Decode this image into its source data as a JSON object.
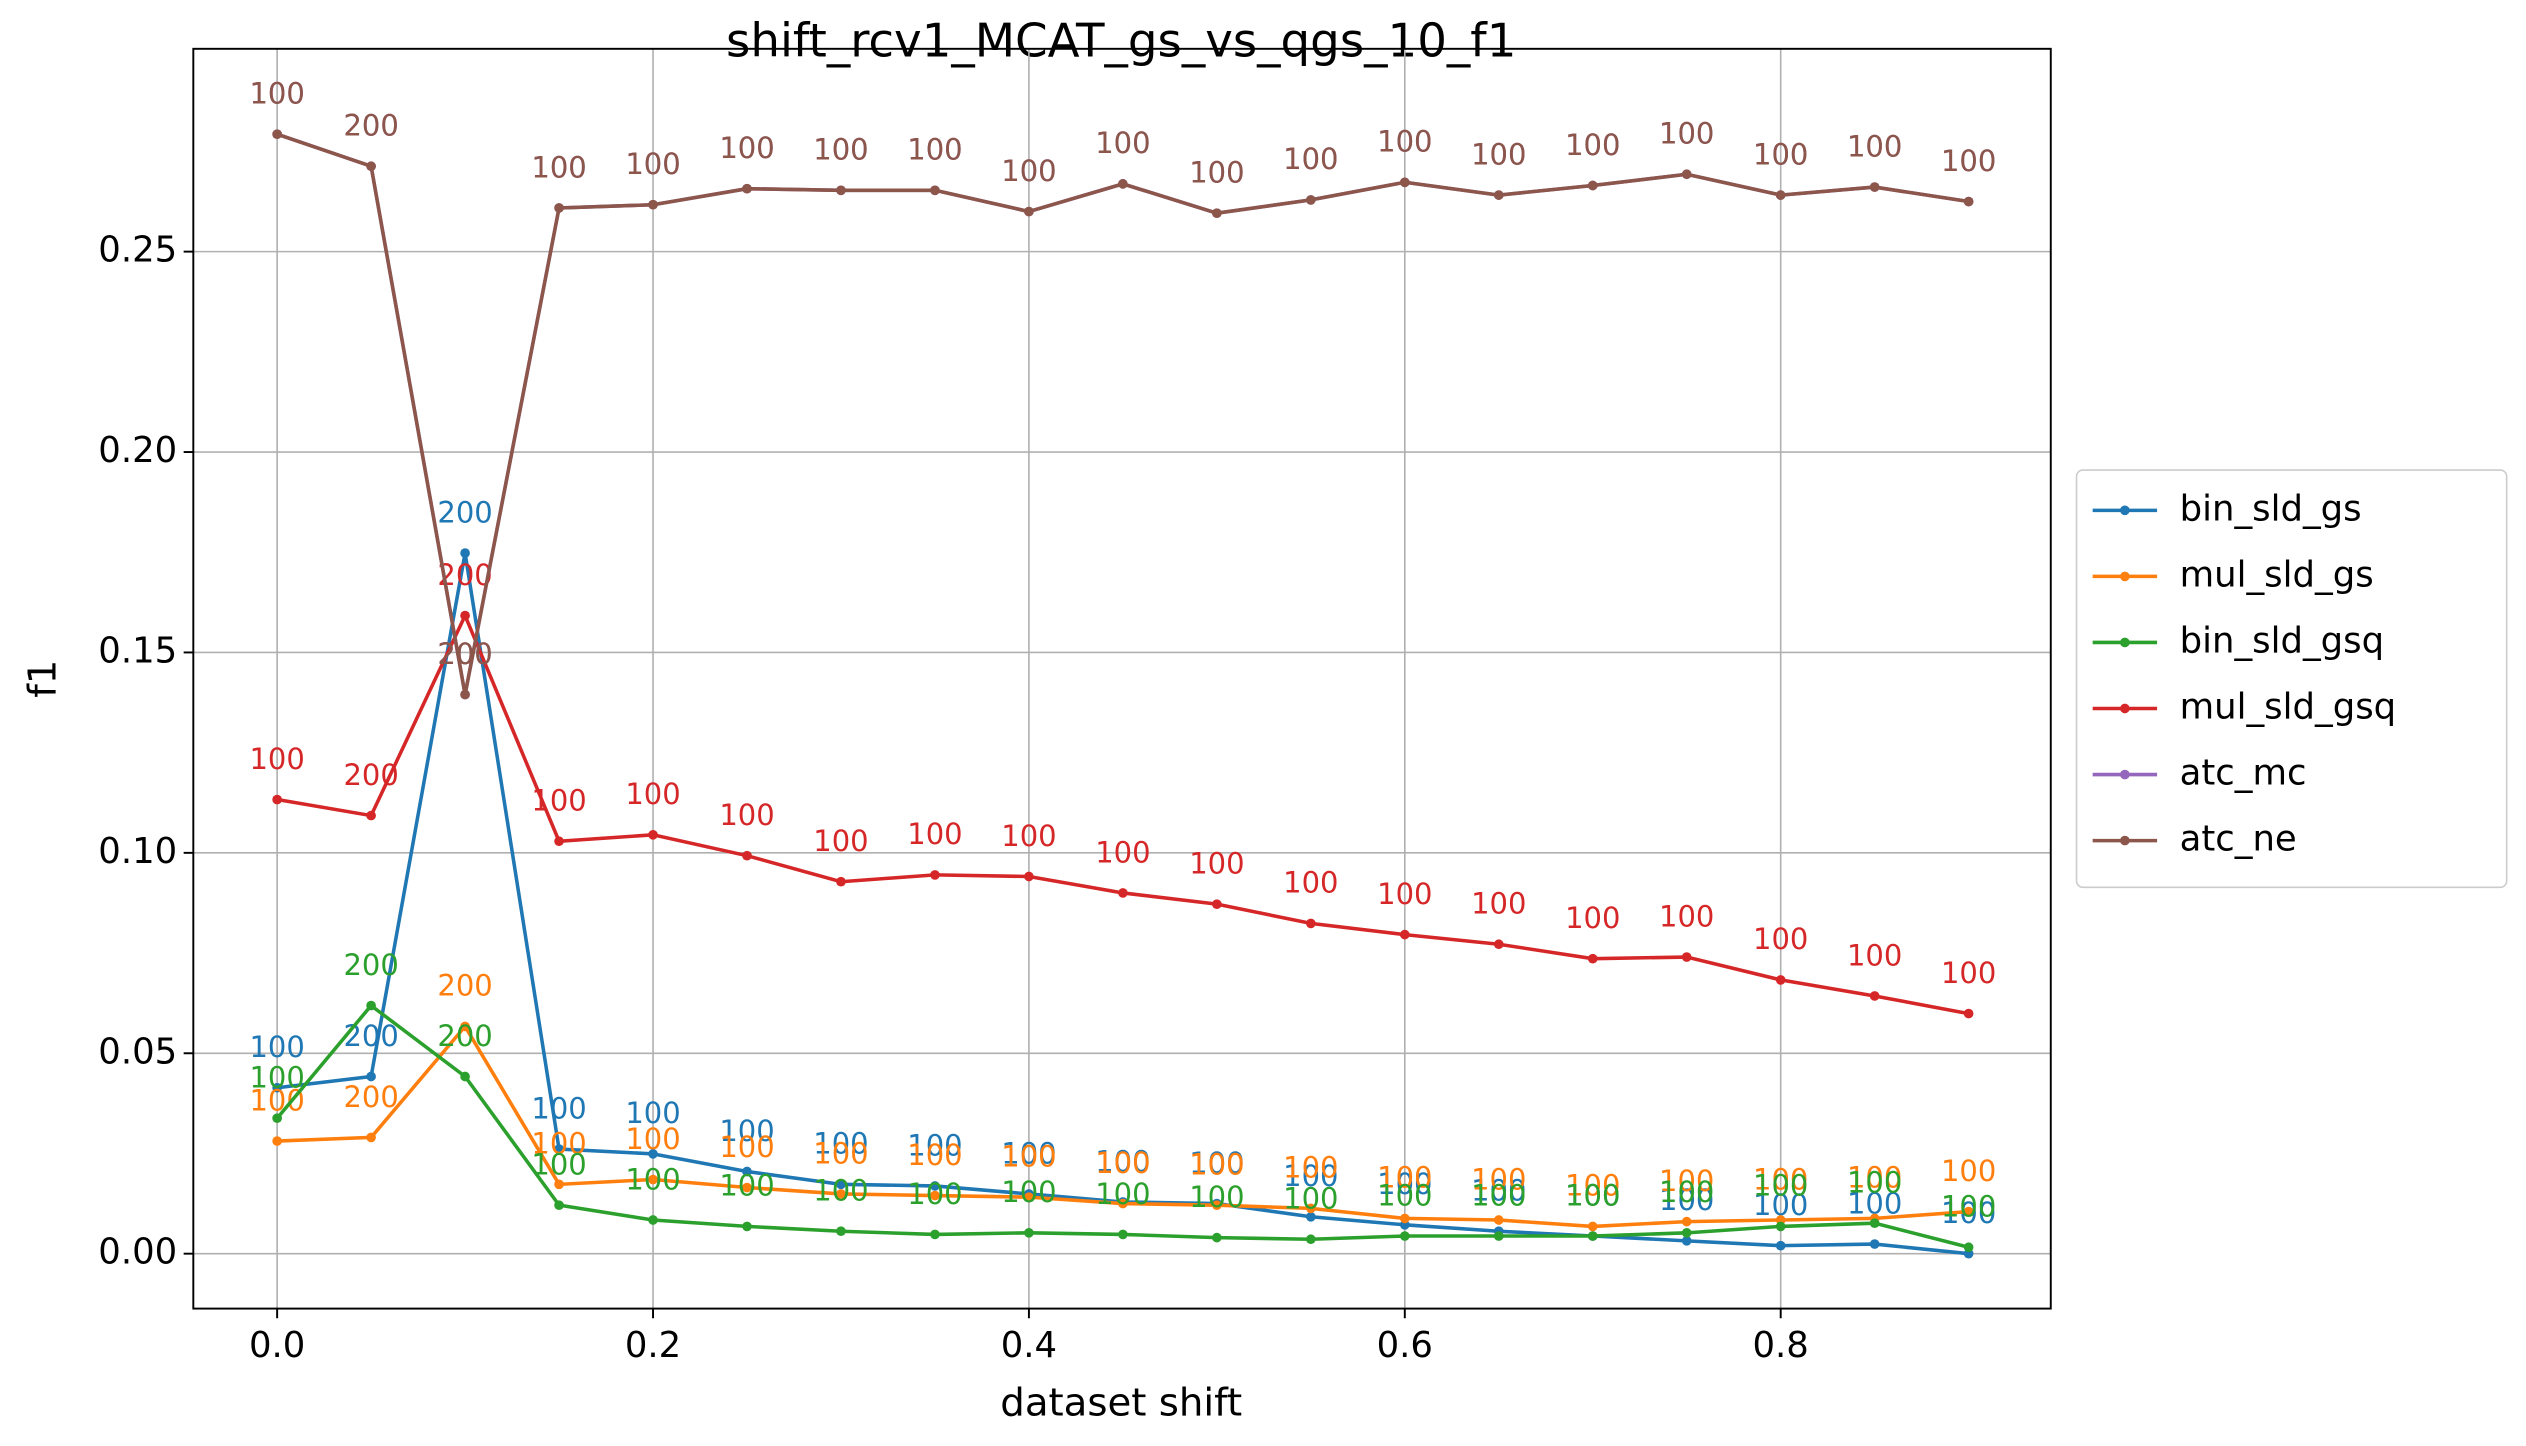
{
  "chart_data": {
    "type": "line",
    "title": "shift_rcv1_MCAT_gs_vs_qgs_10_f1",
    "x_label": "dataset shift",
    "y_label": "f1",
    "x": [
      0,
      0.05,
      0.1,
      0.15,
      0.2,
      0.25,
      0.3,
      0.35,
      0.4,
      0.45,
      0.5,
      0.55,
      0.6,
      0.65,
      0.7,
      0.75,
      0.8,
      0.85,
      0.9
    ],
    "xlim": [
      -0.0446,
      0.9437
    ],
    "ylim": [
      -0.0137,
      0.3006
    ],
    "xticks": [
      {
        "value": 0,
        "label": "0.0"
      },
      0.2,
      0.4,
      0.6,
      0.8
    ],
    "yticks": [
      {
        "value": 0,
        "label": "0.00"
      },
      0.05,
      {
        "value": 0.1,
        "label": "0.10"
      },
      0.15,
      {
        "value": 0.2,
        "label": "0.20"
      },
      0.25
    ],
    "grid": true,
    "legend": "right",
    "series": [
      {
        "name": "bin_sld_gs",
        "color": "#1f77b4",
        "values": [
          0.0414,
          0.0442,
          0.1748,
          0.0261,
          0.0249,
          0.0205,
          0.0173,
          0.0169,
          0.0149,
          0.0129,
          0.0125,
          0.0092,
          0.0072,
          0.0056,
          0.0044,
          0.0032,
          0.002,
          0.0024,
          0.0
        ],
        "counts": [
          100,
          200,
          200,
          100,
          100,
          100,
          100,
          100,
          100,
          100,
          100,
          100,
          100,
          100,
          100,
          100,
          100,
          100,
          100
        ]
      },
      {
        "name": "mul_sld_gs",
        "color": "#ff7f0e",
        "values": [
          0.0281,
          0.029,
          0.0567,
          0.0173,
          0.0185,
          0.0165,
          0.0149,
          0.0145,
          0.0141,
          0.0125,
          0.0121,
          0.0113,
          0.0088,
          0.0084,
          0.0068,
          0.008,
          0.0084,
          0.0088,
          0.0105
        ],
        "counts": [
          100,
          200,
          200,
          100,
          100,
          100,
          100,
          100,
          100,
          100,
          100,
          100,
          100,
          100,
          100,
          100,
          100,
          100,
          100
        ]
      },
      {
        "name": "bin_sld_gsq",
        "color": "#2ca02c",
        "values": [
          0.0338,
          0.0619,
          0.0442,
          0.0121,
          0.0084,
          0.0068,
          0.0056,
          0.0048,
          0.0052,
          0.0048,
          0.004,
          0.0036,
          0.0044,
          0.0044,
          0.0044,
          0.0052,
          0.0068,
          0.0076,
          0.0016
        ],
        "counts": [
          100,
          200,
          200,
          100,
          100,
          100,
          100,
          100,
          100,
          100,
          100,
          100,
          100,
          100,
          100,
          100,
          100,
          100,
          100
        ]
      },
      {
        "name": "mul_sld_gsq",
        "color": "#d62728",
        "values": [
          0.1133,
          0.1093,
          0.1592,
          0.1029,
          0.1045,
          0.0993,
          0.0928,
          0.0945,
          0.0941,
          0.09,
          0.0872,
          0.0824,
          0.0796,
          0.0772,
          0.0736,
          0.074,
          0.0683,
          0.0643,
          0.0599
        ],
        "counts": [
          100,
          200,
          200,
          100,
          100,
          100,
          100,
          100,
          100,
          100,
          100,
          100,
          100,
          100,
          100,
          100,
          100,
          100,
          100
        ]
      },
      {
        "name": "atc_mc",
        "color": "#9467bd",
        "values": [
          0.2793,
          0.2713,
          0.1395,
          0.2609,
          0.2617,
          0.2657,
          0.2653,
          0.2653,
          0.26,
          0.2669,
          0.2596,
          0.2629,
          0.2673,
          0.2641,
          0.2665,
          0.2693,
          0.2641,
          0.2661,
          0.2625
        ],
        "counts": [
          100,
          200,
          200,
          100,
          100,
          100,
          100,
          100,
          100,
          100,
          100,
          100,
          100,
          100,
          100,
          100,
          100,
          100,
          100
        ]
      },
      {
        "name": "atc_ne",
        "color": "#8c564b",
        "values": [
          0.2793,
          0.2713,
          0.1395,
          0.2609,
          0.2617,
          0.2657,
          0.2653,
          0.2653,
          0.26,
          0.2669,
          0.2596,
          0.2629,
          0.2673,
          0.2641,
          0.2665,
          0.2693,
          0.2641,
          0.2661,
          0.2625
        ],
        "counts": [
          100,
          200,
          200,
          100,
          100,
          100,
          100,
          100,
          100,
          100,
          100,
          100,
          100,
          100,
          100,
          100,
          100,
          100,
          100
        ]
      }
    ]
  }
}
